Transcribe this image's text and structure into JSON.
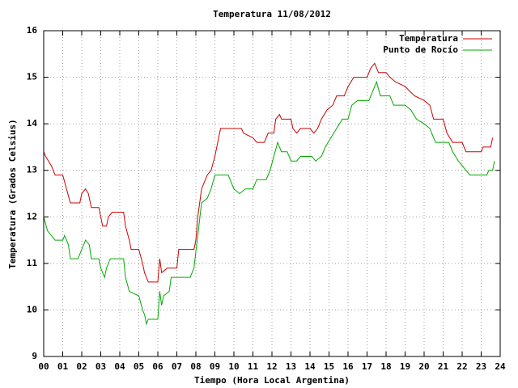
{
  "chart_data": {
    "type": "line",
    "title": "Temperatura 11/08/2012",
    "x_label": "Tiempo (Hora Local Argentina)",
    "y_label": "Temperatura (Grados Celsius)",
    "xlim": [
      0,
      24
    ],
    "ylim": [
      9,
      16
    ],
    "grid": true,
    "legend": "top-right",
    "xticks": [
      {
        "value": 0,
        "label": "00"
      },
      {
        "value": 1,
        "label": "01"
      },
      {
        "value": 2,
        "label": "02"
      },
      {
        "value": 3,
        "label": "03"
      },
      {
        "value": 4,
        "label": "04"
      },
      {
        "value": 5,
        "label": "05"
      },
      {
        "value": 6,
        "label": "06"
      },
      {
        "value": 7,
        "label": "07"
      },
      {
        "value": 8,
        "label": "08"
      },
      {
        "value": 9,
        "label": "09"
      },
      {
        "value": 10,
        "label": "10"
      },
      {
        "value": 11,
        "label": "11"
      },
      {
        "value": 12,
        "label": "12"
      },
      {
        "value": 13,
        "label": "13"
      },
      {
        "value": 14,
        "label": "14"
      },
      {
        "value": 15,
        "label": "15"
      },
      {
        "value": 16,
        "label": "16"
      },
      {
        "value": 17,
        "label": "17"
      },
      {
        "value": 18,
        "label": "18"
      },
      {
        "value": 19,
        "label": "19"
      },
      {
        "value": 20,
        "label": "20"
      },
      {
        "value": 21,
        "label": "21"
      },
      {
        "value": 22,
        "label": "22"
      },
      {
        "value": 23,
        "label": "23"
      },
      {
        "value": 24,
        "label": "24"
      }
    ],
    "yticks": [
      9,
      10,
      11,
      12,
      13,
      14,
      15,
      16
    ],
    "series": [
      {
        "name": "Temperatura",
        "color": "#cc0000",
        "x": [
          0.0,
          0.1,
          0.25,
          0.4,
          0.6,
          1.0,
          1.2,
          1.4,
          1.9,
          2.0,
          2.2,
          2.35,
          2.5,
          2.9,
          3.0,
          3.1,
          3.3,
          3.4,
          3.6,
          4.2,
          4.3,
          4.5,
          4.6,
          5.0,
          5.2,
          5.3,
          5.5,
          6.0,
          6.1,
          6.2,
          6.5,
          7.0,
          7.1,
          7.9,
          8.0,
          8.1,
          8.3,
          8.6,
          8.8,
          9.0,
          9.2,
          9.3,
          10.4,
          10.5,
          11.0,
          11.2,
          11.6,
          11.8,
          12.1,
          12.2,
          12.4,
          12.5,
          13.0,
          13.1,
          13.3,
          13.5,
          14.0,
          14.2,
          14.4,
          14.6,
          14.9,
          15.2,
          15.4,
          15.8,
          16.0,
          16.3,
          17.0,
          17.2,
          17.4,
          17.6,
          18.0,
          18.2,
          18.5,
          19.0,
          19.5,
          20.0,
          20.3,
          20.5,
          21.0,
          21.2,
          21.5,
          22.0,
          22.2,
          23.0,
          23.1,
          23.5,
          23.6
        ],
        "values": [
          13.4,
          13.3,
          13.2,
          13.1,
          12.9,
          12.9,
          12.6,
          12.3,
          12.3,
          12.5,
          12.6,
          12.5,
          12.2,
          12.2,
          12.0,
          11.8,
          11.8,
          12.0,
          12.1,
          12.1,
          11.8,
          11.5,
          11.3,
          11.3,
          11.0,
          10.8,
          10.6,
          10.6,
          11.1,
          10.8,
          10.9,
          10.9,
          11.3,
          11.3,
          11.5,
          12.0,
          12.6,
          12.9,
          13.0,
          13.3,
          13.7,
          13.9,
          13.9,
          13.8,
          13.7,
          13.6,
          13.6,
          13.8,
          13.8,
          14.1,
          14.2,
          14.1,
          14.1,
          13.9,
          13.8,
          13.9,
          13.9,
          13.8,
          13.9,
          14.1,
          14.3,
          14.4,
          14.6,
          14.6,
          14.8,
          15.0,
          15.0,
          15.2,
          15.3,
          15.1,
          15.1,
          15.0,
          14.9,
          14.8,
          14.6,
          14.5,
          14.4,
          14.1,
          14.1,
          13.8,
          13.6,
          13.6,
          13.4,
          13.4,
          13.5,
          13.5,
          13.7
        ]
      },
      {
        "name": "Punto de Rocío",
        "color": "#00aa00",
        "x": [
          0.0,
          0.2,
          0.4,
          0.6,
          1.0,
          1.1,
          1.3,
          1.4,
          1.8,
          1.9,
          2.0,
          2.2,
          2.4,
          2.5,
          2.9,
          3.0,
          3.2,
          3.3,
          3.5,
          4.2,
          4.3,
          4.5,
          5.0,
          5.2,
          5.3,
          5.4,
          5.5,
          6.0,
          6.1,
          6.2,
          6.3,
          6.6,
          6.7,
          7.7,
          7.9,
          8.1,
          8.3,
          8.6,
          8.8,
          9.0,
          9.7,
          9.8,
          10.0,
          10.3,
          10.6,
          11.0,
          11.2,
          11.7,
          11.9,
          12.1,
          12.3,
          12.5,
          12.8,
          13.0,
          13.3,
          13.5,
          14.1,
          14.3,
          14.6,
          14.8,
          15.1,
          15.4,
          15.7,
          16.0,
          16.2,
          16.5,
          17.1,
          17.4,
          17.5,
          17.7,
          18.2,
          18.4,
          19.0,
          19.3,
          19.6,
          20.0,
          20.3,
          20.6,
          21.3,
          21.5,
          21.8,
          22.2,
          22.4,
          23.3,
          23.4,
          23.6,
          23.7
        ],
        "values": [
          12.0,
          11.7,
          11.6,
          11.5,
          11.5,
          11.6,
          11.4,
          11.1,
          11.1,
          11.2,
          11.3,
          11.5,
          11.4,
          11.1,
          11.1,
          10.9,
          10.7,
          10.9,
          11.1,
          11.1,
          10.7,
          10.4,
          10.3,
          10.0,
          9.9,
          9.7,
          9.8,
          9.8,
          10.4,
          10.1,
          10.3,
          10.4,
          10.7,
          10.7,
          10.9,
          11.6,
          12.3,
          12.4,
          12.6,
          12.9,
          12.9,
          12.8,
          12.6,
          12.5,
          12.6,
          12.6,
          12.8,
          12.8,
          13.0,
          13.3,
          13.6,
          13.4,
          13.4,
          13.2,
          13.2,
          13.3,
          13.3,
          13.2,
          13.3,
          13.5,
          13.7,
          13.9,
          14.1,
          14.1,
          14.4,
          14.5,
          14.5,
          14.8,
          14.9,
          14.6,
          14.6,
          14.4,
          14.4,
          14.3,
          14.1,
          14.0,
          13.9,
          13.6,
          13.6,
          13.4,
          13.2,
          13.0,
          12.9,
          12.9,
          13.0,
          13.0,
          13.2
        ]
      }
    ]
  }
}
